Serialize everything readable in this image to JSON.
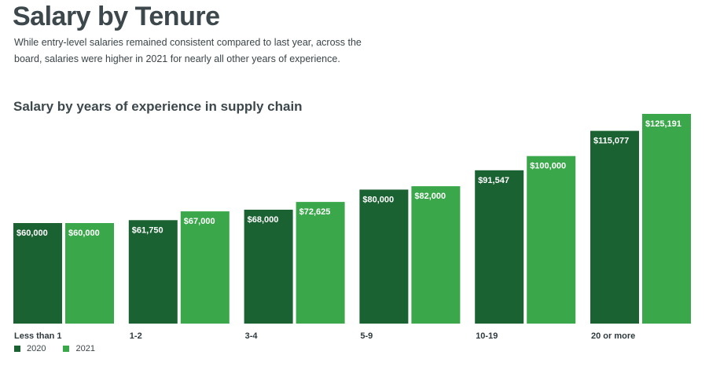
{
  "header": {
    "title": "Salary by Tenure",
    "intro": "While entry-level salaries remained consistent compared to last year, across the board, salaries were higher in 2021 for nearly all other years of experience."
  },
  "chart_data": {
    "type": "bar",
    "title": "Salary by years of experience in supply chain",
    "categories": [
      "Less than 1",
      "1-2",
      "3-4",
      "5-9",
      "10-19",
      "20 or more"
    ],
    "series": [
      {
        "name": "2020",
        "color": "#1b6233",
        "values": [
          60000,
          61750,
          68000,
          80000,
          91547,
          115077
        ],
        "labels": [
          "$60,000",
          "$61,750",
          "$68,000",
          "$80,000",
          "$91,547",
          "$115,077"
        ]
      },
      {
        "name": "2021",
        "color": "#3aa84a",
        "values": [
          60000,
          67000,
          72625,
          82000,
          100000,
          125191
        ],
        "labels": [
          "$60,000",
          "$67,000",
          "$72,625",
          "$82,000",
          "$100,000",
          "$125,191"
        ]
      }
    ],
    "grid": false,
    "legend": "bottom-left"
  }
}
